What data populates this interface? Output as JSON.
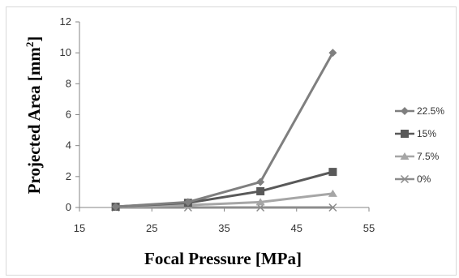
{
  "chart_data": {
    "type": "line",
    "title": "",
    "xlabel": "Focal Pressure [MPa]",
    "ylabel_main": "Projected Area [mm",
    "ylabel_sup": "2",
    "ylabel_close": "]",
    "xlim": [
      15,
      55
    ],
    "ylim": [
      0,
      12
    ],
    "xticks": [
      15,
      25,
      35,
      45,
      55
    ],
    "yticks": [
      0,
      2,
      4,
      6,
      8,
      10,
      12
    ],
    "x": [
      20,
      30,
      40,
      50
    ],
    "grid": false,
    "legend_position": "right",
    "series": [
      {
        "name": "22.5%",
        "values": [
          0.05,
          0.35,
          1.65,
          10.0
        ],
        "color": "#7f7f7f",
        "marker": "diamond"
      },
      {
        "name": "15%",
        "values": [
          0.05,
          0.3,
          1.05,
          2.3
        ],
        "color": "#595959",
        "marker": "square"
      },
      {
        "name": "7.5%",
        "values": [
          0.02,
          0.15,
          0.35,
          0.9
        ],
        "color": "#a6a6a6",
        "marker": "triangle"
      },
      {
        "name": "0%",
        "values": [
          0.0,
          0.0,
          0.0,
          0.0
        ],
        "color": "#8c8c8c",
        "marker": "x"
      }
    ]
  }
}
